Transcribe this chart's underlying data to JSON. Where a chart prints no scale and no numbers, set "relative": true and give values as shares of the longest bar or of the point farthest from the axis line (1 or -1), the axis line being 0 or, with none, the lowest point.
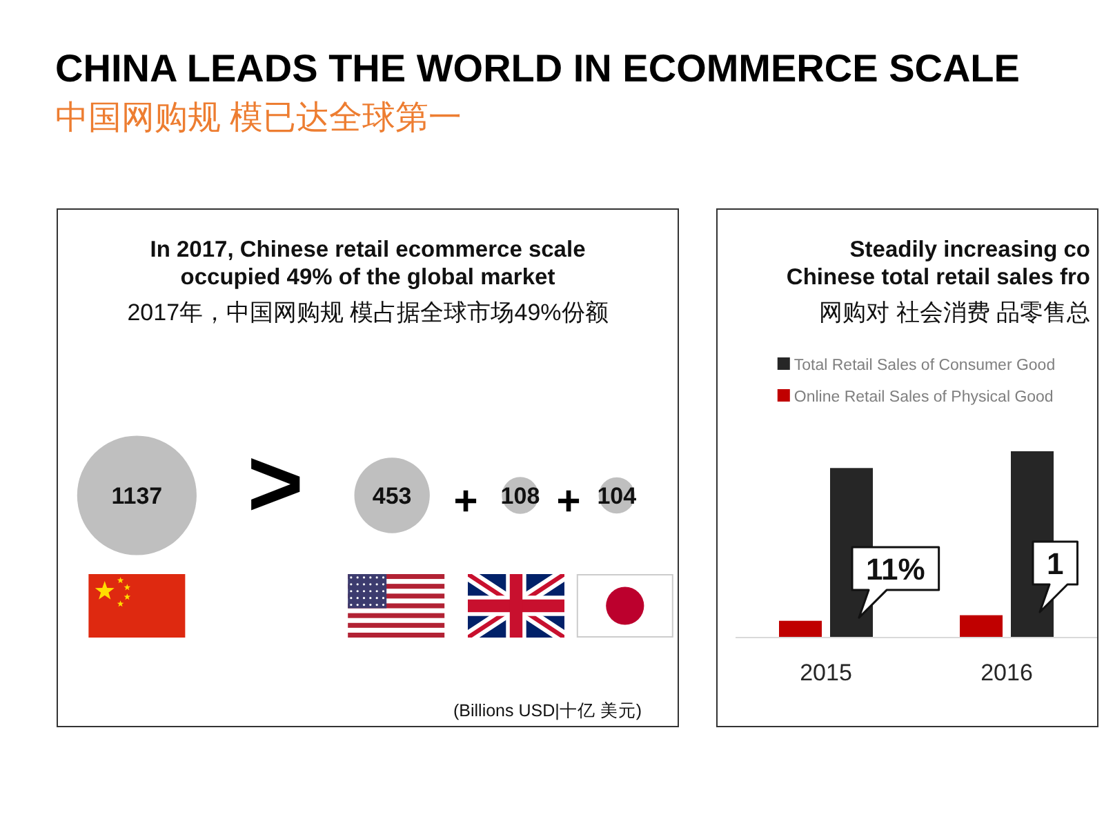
{
  "chart_data": [
    {
      "type": "other",
      "title": "In 2017, Chinese retail ecommerce scale\noccupied 49% of the global market",
      "subtitle": "2017年，中国网购规 模占据全球市场49%份额",
      "categories": [
        null,
        null,
        null,
        null
      ],
      "values": [
        1137,
        453,
        108,
        104
      ],
      "color": "#bfbfbf",
      "data_labels": true,
      "annotations": [
        "CHINA LEADS THE WORLD IN ECOMMERCE SCALE",
        "中国网购规 模已达全球第一",
        ">",
        "+",
        "+",
        "(Billions USD|十亿 美元)"
      ]
    },
    {
      "type": "bar",
      "title": "Steadily increasing co\nChinese total retail sales fro",
      "subtitle": "网购对 社会消费 品零售总",
      "categories": [
        "2015",
        "2016"
      ],
      "series": [
        {
          "name": "Total Retail Sales of Consumer Good",
          "color": "#262626",
          "values": [
            0.91,
            1
          ]
        },
        {
          "name": "Online Retail Sales of Physical Good",
          "color": "#c00000",
          "values": [
            0.09,
            0.12
          ]
        }
      ],
      "relative": true,
      "legend": "top",
      "annotations": [
        {
          "text": "11%",
          "x": "2015",
          "y": 0.37
        },
        {
          "text": "1",
          "x": "2016",
          "y": 0.4
        }
      ]
    }
  ]
}
